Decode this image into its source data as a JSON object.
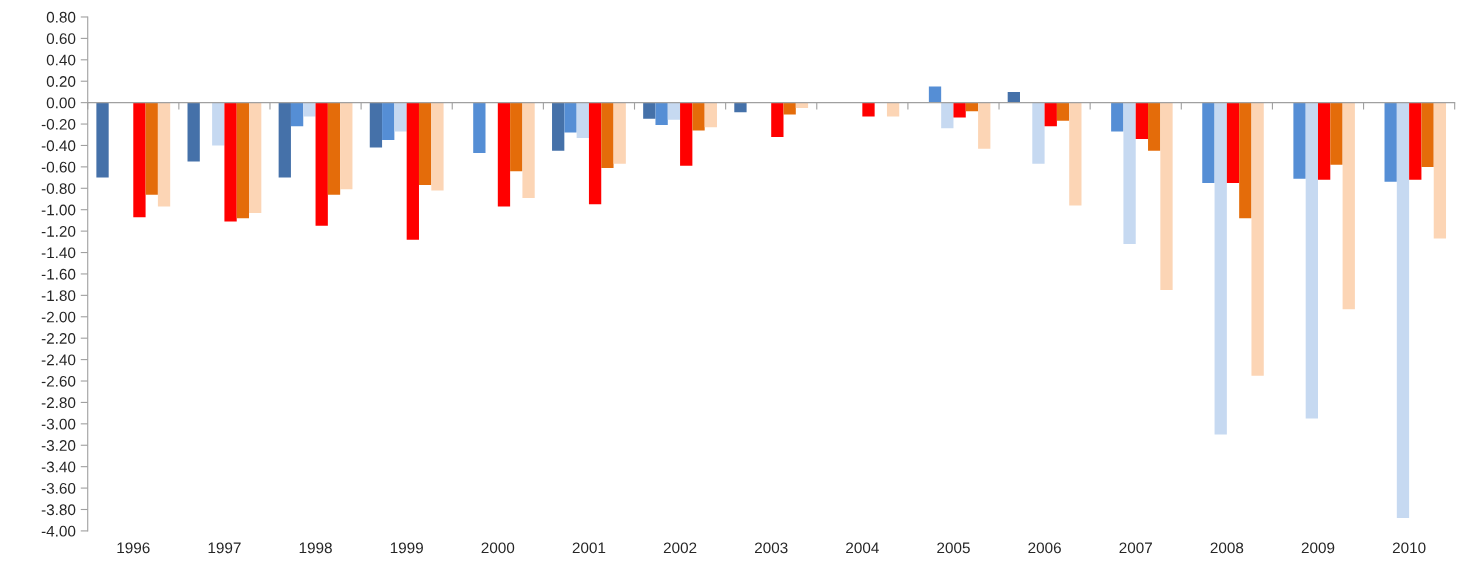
{
  "chart_data": {
    "type": "bar",
    "categories": [
      "1996",
      "1997",
      "1998",
      "1999",
      "2000",
      "2001",
      "2002",
      "2003",
      "2004",
      "2005",
      "2006",
      "2007",
      "2008",
      "2009",
      "2010"
    ],
    "series": [
      {
        "color": "#4571a9",
        "values": [
          -0.7,
          -0.55,
          -0.7,
          -0.42,
          null,
          -0.45,
          -0.15,
          -0.09,
          null,
          null,
          0.1,
          null,
          null,
          null,
          null
        ]
      },
      {
        "color": "#558ed5",
        "values": [
          null,
          null,
          -0.22,
          -0.35,
          -0.47,
          -0.28,
          -0.21,
          null,
          null,
          0.15,
          null,
          -0.27,
          -0.75,
          -0.71,
          -0.74
        ]
      },
      {
        "color": "#c6d9f1",
        "values": [
          null,
          -0.4,
          -0.13,
          -0.27,
          null,
          -0.33,
          -0.16,
          null,
          null,
          -0.24,
          -0.57,
          -1.32,
          -3.1,
          -2.95,
          -3.88
        ]
      },
      {
        "color": "#ff0000",
        "values": [
          -1.07,
          -1.11,
          -1.15,
          -1.28,
          -0.97,
          -0.95,
          -0.59,
          -0.32,
          -0.13,
          -0.14,
          -0.22,
          -0.34,
          -0.75,
          -0.72,
          -0.72
        ]
      },
      {
        "color": "#e46c0a",
        "values": [
          -0.86,
          -1.08,
          -0.86,
          -0.77,
          -0.64,
          -0.61,
          -0.26,
          -0.11,
          null,
          -0.08,
          -0.17,
          -0.45,
          -1.08,
          -0.58,
          -0.6
        ]
      },
      {
        "color": "#fcd5b5",
        "values": [
          -0.97,
          -1.03,
          -0.81,
          -0.82,
          -0.89,
          -0.57,
          -0.23,
          -0.05,
          -0.13,
          -0.43,
          -0.96,
          -1.75,
          -2.55,
          -1.93,
          -1.27
        ]
      }
    ],
    "ylim": [
      -4.0,
      0.8
    ],
    "yticks": [
      {
        "value": 0.8,
        "label": "0.80"
      },
      {
        "value": 0.6,
        "label": "0.60"
      },
      {
        "value": 0.4,
        "label": "0.40"
      },
      {
        "value": 0.2,
        "label": "0.20"
      },
      {
        "value": 0.0,
        "label": "0.00"
      },
      {
        "value": -0.2,
        "label": "-0.20"
      },
      {
        "value": -0.4,
        "label": "-0.40"
      },
      {
        "value": -0.6,
        "label": "-0.60"
      },
      {
        "value": -0.8,
        "label": "-0.80"
      },
      {
        "value": -1.0,
        "label": "-1.00"
      },
      {
        "value": -1.2,
        "label": "-1.20"
      },
      {
        "value": -1.4,
        "label": "-1.40"
      },
      {
        "value": -1.6,
        "label": "-1.60"
      },
      {
        "value": -1.8,
        "label": "-1.80"
      },
      {
        "value": -2.0,
        "label": "-2.00"
      },
      {
        "value": -2.2,
        "label": "-2.20"
      },
      {
        "value": -2.4,
        "label": "-2.40"
      },
      {
        "value": -2.6,
        "label": "-2.60"
      },
      {
        "value": -2.8,
        "label": "-2.80"
      },
      {
        "value": -3.0,
        "label": "-3.00"
      },
      {
        "value": -3.2,
        "label": "-3.20"
      },
      {
        "value": -3.4,
        "label": "-3.40"
      },
      {
        "value": -3.6,
        "label": "-3.60"
      },
      {
        "value": -3.8,
        "label": "-3.80"
      },
      {
        "value": -4.0,
        "label": "-4.00"
      }
    ],
    "legend": false
  }
}
